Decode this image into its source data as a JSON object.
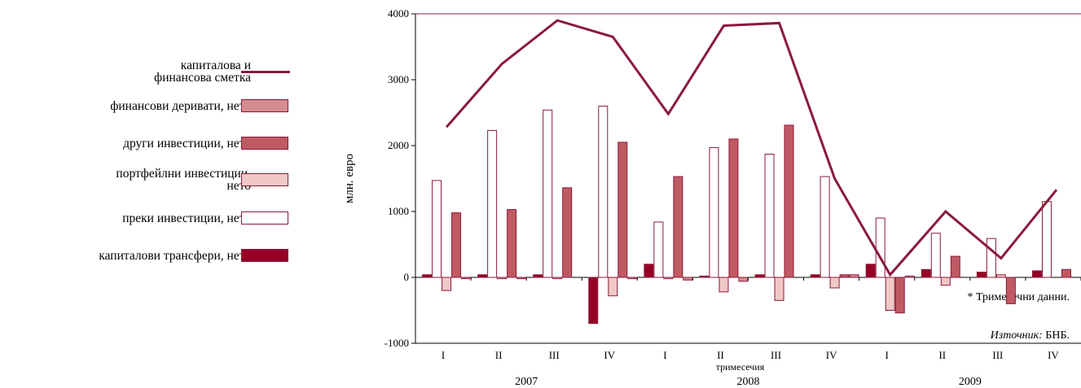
{
  "colors": {
    "line": "#8b1a3a",
    "financial_derivatives": "#d48c8f",
    "other_investment": "#bf5a62",
    "portfolio_investment": "#f0c8c6",
    "direct_investment": "#ffffff",
    "capital_transfers": "#960025",
    "outline": "#8b1a3a"
  },
  "legend": {
    "items": [
      {
        "label_lines": [
          "капиталова и",
          "финансова сметка"
        ],
        "type": "line",
        "color_key": "line"
      },
      {
        "label_lines": [
          "финансови деривати, нето"
        ],
        "type": "bar",
        "color_key": "financial_derivatives"
      },
      {
        "label_lines": [
          "други инвестиции, нето"
        ],
        "type": "bar",
        "color_key": "other_investment"
      },
      {
        "label_lines": [
          "портфейлни инвестиции,",
          "нето"
        ],
        "type": "bar",
        "color_key": "portfolio_investment"
      },
      {
        "label_lines": [
          "преки инвестиции, нето"
        ],
        "type": "bar",
        "color_key": "direct_investment"
      },
      {
        "label_lines": [
          "капиталови трансфери, нето"
        ],
        "type": "bar",
        "color_key": "capital_transfers"
      }
    ]
  },
  "notes": {
    "quarterly": "* Тримесечни данни.",
    "source_label": "Източник:",
    "source_value": " БНБ."
  },
  "chart_data": {
    "type": "bar",
    "ylabel": "млн. евро",
    "xlabel": "тримесечия",
    "ylim": [
      -1000,
      4000
    ],
    "yticks": [
      -1000,
      0,
      1000,
      2000,
      3000,
      4000
    ],
    "categories": [
      "I",
      "II",
      "III",
      "IV",
      "I",
      "II",
      "III",
      "IV",
      "I",
      "II",
      "III",
      "IV"
    ],
    "years": [
      "2007",
      "2008",
      "2009"
    ],
    "series": [
      {
        "name": "капиталови трансфери, нето",
        "color_key": "capital_transfers",
        "values": [
          40,
          40,
          40,
          -700,
          200,
          20,
          40,
          40,
          200,
          120,
          80,
          100
        ]
      },
      {
        "name": "преки инвестиции, нето",
        "color_key": "direct_investment",
        "values": [
          1470,
          2230,
          2540,
          2600,
          840,
          1970,
          1870,
          1530,
          900,
          670,
          590,
          1150
        ]
      },
      {
        "name": "портфейлни инвестиции, нето",
        "color_key": "portfolio_investment",
        "values": [
          -200,
          -20,
          -20,
          -280,
          -20,
          -220,
          -350,
          -160,
          -500,
          -120,
          40,
          0
        ]
      },
      {
        "name": "други инвестиции, нето",
        "color_key": "other_investment",
        "values": [
          980,
          1030,
          1360,
          2050,
          1530,
          2100,
          2310,
          40,
          -540,
          320,
          -400,
          120
        ]
      },
      {
        "name": "финансови деривати, нето",
        "color_key": "financial_derivatives",
        "values": [
          -20,
          -20,
          0,
          -20,
          -40,
          -60,
          0,
          40,
          20,
          0,
          0,
          0
        ]
      }
    ],
    "line_series": {
      "name": "капиталова и финансова сметка",
      "color_key": "line",
      "values": [
        2280,
        3240,
        3900,
        3650,
        2480,
        3820,
        3860,
        1500,
        40,
        1000,
        290,
        1330
      ]
    }
  }
}
